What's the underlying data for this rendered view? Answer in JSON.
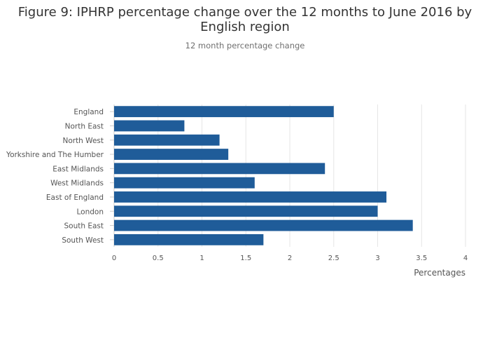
{
  "chart_data": {
    "type": "bar",
    "orientation": "horizontal",
    "title_lines": [
      "Figure 9: IPHRP percentage change over the 12 months to June 2016 by",
      "English region"
    ],
    "subtitle": "12 month percentage change",
    "xlabel": "Percentages",
    "ylabel": "",
    "xlim": [
      0,
      4
    ],
    "xticks": [
      0,
      0.5,
      1,
      1.5,
      2,
      2.5,
      3,
      3.5,
      4
    ],
    "grid": true,
    "categories": [
      "England",
      "North East",
      "North West",
      "Yorkshire and The Humber",
      "East Midlands",
      "West Midlands",
      "East of England",
      "London",
      "South East",
      "South West"
    ],
    "values": [
      2.5,
      0.8,
      1.2,
      1.3,
      2.4,
      1.6,
      3.1,
      3.0,
      3.4,
      1.7
    ],
    "bar_color": "#1f5c99"
  }
}
